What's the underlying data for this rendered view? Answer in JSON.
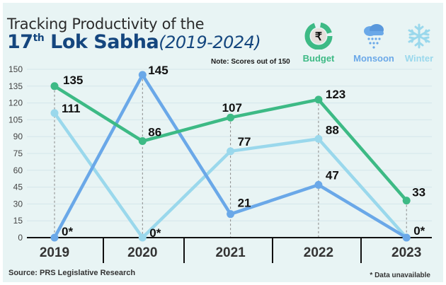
{
  "header": {
    "title_line1": "Tracking Productivity of the",
    "title_num": "17",
    "title_sup": "th",
    "title_main": " Lok Sabha",
    "title_years": "(2019-2024)",
    "note": "Note: Scores out of 150"
  },
  "legend": [
    {
      "name": "Budget",
      "icon": "rupee-pie-icon",
      "color": "#3dba85"
    },
    {
      "name": "Monsoon",
      "icon": "rain-cloud-icon",
      "color": "#6aa8e8"
    },
    {
      "name": "Winter",
      "icon": "snowflake-icon",
      "color": "#9ad8ec"
    }
  ],
  "footer": {
    "source": "Source: PRS Legislative Research",
    "footnote": "* Data unavailable"
  },
  "chart_data": {
    "type": "line",
    "title": "Tracking Productivity of the 17th Lok Sabha (2019-2024)",
    "xlabel": "",
    "ylabel": "",
    "categories": [
      "2019",
      "2020",
      "2021",
      "2022",
      "2023"
    ],
    "ylim": [
      0,
      150
    ],
    "yticks": [
      0,
      15,
      30,
      45,
      60,
      75,
      90,
      105,
      120,
      135,
      150
    ],
    "grid": true,
    "legend_position": "top-right",
    "series": [
      {
        "name": "Budget",
        "color": "#3dba85",
        "values": [
          135,
          86,
          107,
          123,
          33
        ],
        "labels": [
          "135",
          "86",
          "107",
          "123",
          "33"
        ]
      },
      {
        "name": "Monsoon",
        "color": "#6aa8e8",
        "values": [
          0,
          145,
          21,
          47,
          0
        ],
        "labels": [
          "0*",
          "145",
          "21",
          "47",
          ""
        ]
      },
      {
        "name": "Winter",
        "color": "#9ad8ec",
        "values": [
          111,
          0,
          77,
          88,
          0
        ],
        "labels": [
          "111",
          "0*",
          "77",
          "88",
          "0*"
        ]
      }
    ],
    "annotations": [
      "* Data unavailable",
      "Note: Scores out of 150"
    ]
  }
}
